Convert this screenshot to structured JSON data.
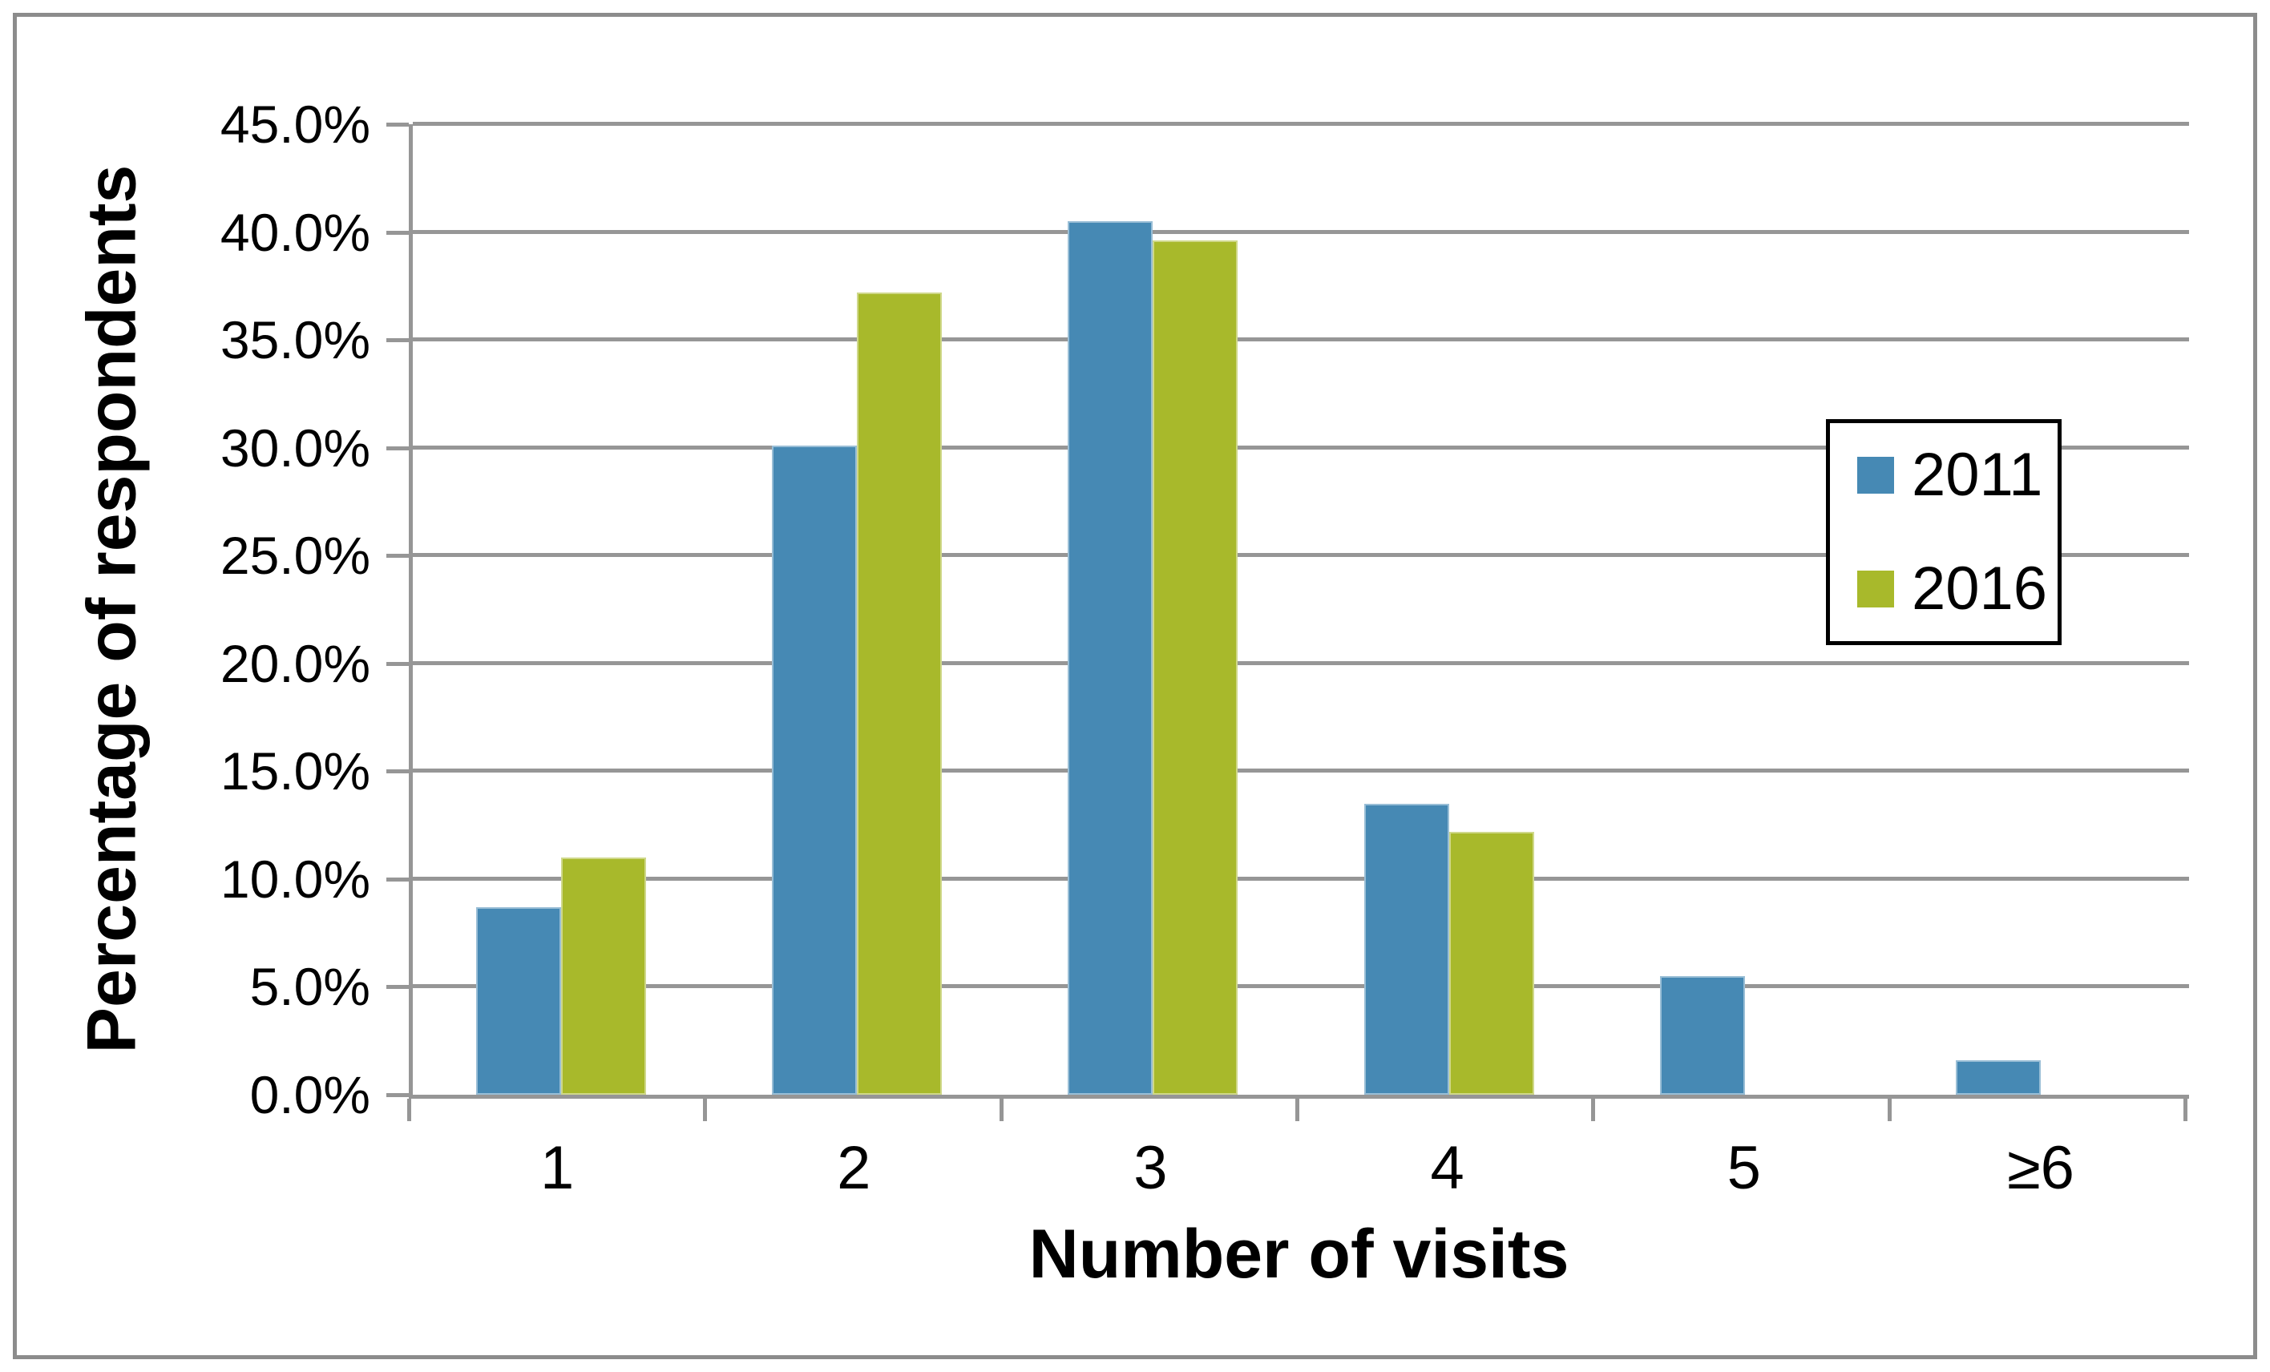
{
  "chart_data": {
    "type": "bar",
    "categories": [
      "1",
      "2",
      "3",
      "4",
      "5",
      "≥6"
    ],
    "series": [
      {
        "name": "2011",
        "color": "#4689B4",
        "values": [
          8.7,
          30.1,
          40.5,
          13.5,
          5.5,
          1.6
        ]
      },
      {
        "name": "2016",
        "color": "#A8B92B",
        "values": [
          11.0,
          37.2,
          39.6,
          12.2,
          0,
          0
        ]
      }
    ],
    "xlabel": "Number of visits",
    "ylabel": "Percentage of respondents",
    "ylim": [
      0,
      45
    ],
    "ytick_step": 5,
    "ytick_decimals": 1,
    "ytick_suffix": "%",
    "grid": "horizontal",
    "legend_position": "upper-right-inside"
  },
  "colors": {
    "background": "#FFFFFF",
    "text": "#000000",
    "frame_border": "#8C8C8C",
    "gridline": "#969696",
    "axis": "#969696",
    "legend_border": "#000000",
    "legend_background": "#FFFFFF"
  }
}
